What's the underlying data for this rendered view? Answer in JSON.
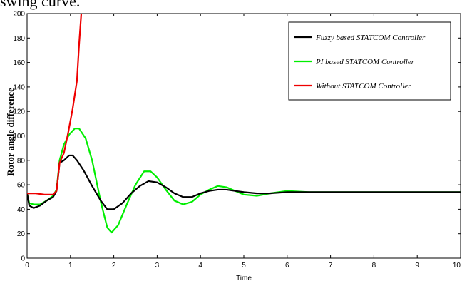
{
  "page_text": "swing curve.",
  "chart_data": {
    "type": "line",
    "title": "",
    "xlabel": "Time",
    "ylabel": "Rotor angle difference",
    "xlim": [
      0,
      10
    ],
    "ylim": [
      0,
      200
    ],
    "xticks": [
      0,
      1,
      2,
      3,
      4,
      5,
      6,
      7,
      8,
      9,
      10
    ],
    "yticks": [
      0,
      20,
      40,
      60,
      80,
      100,
      120,
      140,
      160,
      180,
      200
    ],
    "grid": false,
    "legend_position": "top-right",
    "series": [
      {
        "name": "Fuzzy based STATCOM Controller",
        "color": "#000000",
        "points": [
          [
            0,
            53
          ],
          [
            0.05,
            43
          ],
          [
            0.15,
            41
          ],
          [
            0.3,
            43
          ],
          [
            0.45,
            47
          ],
          [
            0.6,
            50
          ],
          [
            0.68,
            55
          ],
          [
            0.75,
            78
          ],
          [
            0.85,
            80
          ],
          [
            0.97,
            84
          ],
          [
            1.05,
            84
          ],
          [
            1.15,
            80
          ],
          [
            1.3,
            72
          ],
          [
            1.5,
            59
          ],
          [
            1.7,
            47
          ],
          [
            1.85,
            40
          ],
          [
            2.0,
            40
          ],
          [
            2.2,
            45
          ],
          [
            2.4,
            53
          ],
          [
            2.6,
            59
          ],
          [
            2.8,
            63
          ],
          [
            3.0,
            62
          ],
          [
            3.2,
            58
          ],
          [
            3.4,
            53
          ],
          [
            3.6,
            50
          ],
          [
            3.8,
            50
          ],
          [
            4.0,
            53
          ],
          [
            4.2,
            55
          ],
          [
            4.4,
            56
          ],
          [
            4.6,
            56
          ],
          [
            4.8,
            55
          ],
          [
            5.0,
            54
          ],
          [
            5.3,
            53
          ],
          [
            5.6,
            53
          ],
          [
            6.0,
            54
          ],
          [
            6.5,
            54
          ],
          [
            7.0,
            54
          ],
          [
            8.0,
            54
          ],
          [
            9.0,
            54
          ],
          [
            10,
            54
          ]
        ]
      },
      {
        "name": "PI based STATCOM Controller",
        "color": "#00ee00",
        "points": [
          [
            0,
            53
          ],
          [
            0.05,
            45
          ],
          [
            0.15,
            44
          ],
          [
            0.3,
            44
          ],
          [
            0.45,
            47
          ],
          [
            0.6,
            51
          ],
          [
            0.68,
            56
          ],
          [
            0.75,
            80
          ],
          [
            0.85,
            93
          ],
          [
            0.97,
            101
          ],
          [
            1.1,
            106
          ],
          [
            1.2,
            106
          ],
          [
            1.35,
            98
          ],
          [
            1.5,
            80
          ],
          [
            1.7,
            46
          ],
          [
            1.85,
            25
          ],
          [
            1.95,
            21
          ],
          [
            2.1,
            27
          ],
          [
            2.3,
            44
          ],
          [
            2.5,
            60
          ],
          [
            2.7,
            71
          ],
          [
            2.85,
            71
          ],
          [
            3.0,
            66
          ],
          [
            3.2,
            56
          ],
          [
            3.4,
            47
          ],
          [
            3.6,
            44
          ],
          [
            3.8,
            46
          ],
          [
            4.0,
            52
          ],
          [
            4.2,
            56
          ],
          [
            4.4,
            59
          ],
          [
            4.6,
            58
          ],
          [
            4.8,
            55
          ],
          [
            5.0,
            52
          ],
          [
            5.3,
            51
          ],
          [
            5.6,
            53
          ],
          [
            6.0,
            55
          ],
          [
            6.5,
            54
          ],
          [
            7.0,
            54
          ],
          [
            8.0,
            54
          ],
          [
            9.0,
            54
          ],
          [
            10,
            54
          ]
        ]
      },
      {
        "name": "Without STATCOM Controller",
        "color": "#ee0000",
        "points": [
          [
            0,
            53
          ],
          [
            0.2,
            53
          ],
          [
            0.4,
            52
          ],
          [
            0.6,
            52
          ],
          [
            0.68,
            55
          ],
          [
            0.75,
            78
          ],
          [
            0.85,
            86
          ],
          [
            0.95,
            103
          ],
          [
            1.05,
            122
          ],
          [
            1.15,
            145
          ],
          [
            1.2,
            175
          ],
          [
            1.25,
            200
          ]
        ]
      }
    ]
  }
}
